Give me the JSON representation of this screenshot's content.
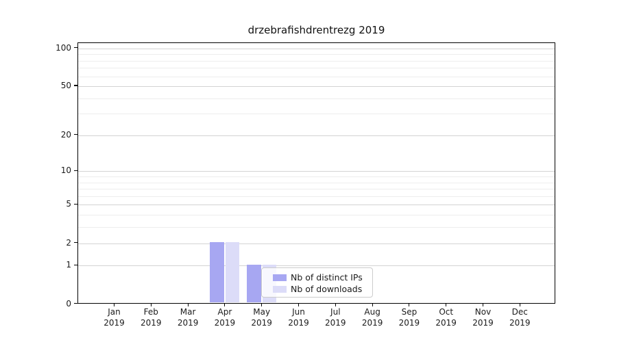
{
  "chart_data": {
    "type": "bar",
    "title": "drzebrafishdrentrezg 2019",
    "categories": [
      "Jan",
      "Feb",
      "Mar",
      "Apr",
      "May",
      "Jun",
      "Jul",
      "Aug",
      "Sep",
      "Oct",
      "Nov",
      "Dec"
    ],
    "year_label": "2019",
    "series": [
      {
        "name": "Nb of distinct IPs",
        "color": "#a7a7f2",
        "values": [
          0,
          0,
          0,
          2,
          1,
          0,
          0,
          0,
          0,
          0,
          0,
          0
        ]
      },
      {
        "name": "Nb of downloads",
        "color": "#dcdcf8",
        "values": [
          0,
          0,
          0,
          2,
          1,
          0,
          0,
          0,
          0,
          0,
          0,
          0
        ]
      }
    ],
    "xlabel": "",
    "ylabel": "",
    "yscale": "log1p",
    "ylim": [
      0,
      110
    ],
    "yticks": [
      0,
      1,
      2,
      5,
      10,
      20,
      50,
      100
    ],
    "yticks_minor": [
      3,
      4,
      6,
      7,
      8,
      9,
      30,
      40,
      60,
      70,
      80,
      90
    ],
    "grid": "horizontal-major-and-minor",
    "legend_position": "lower-center-inside"
  }
}
